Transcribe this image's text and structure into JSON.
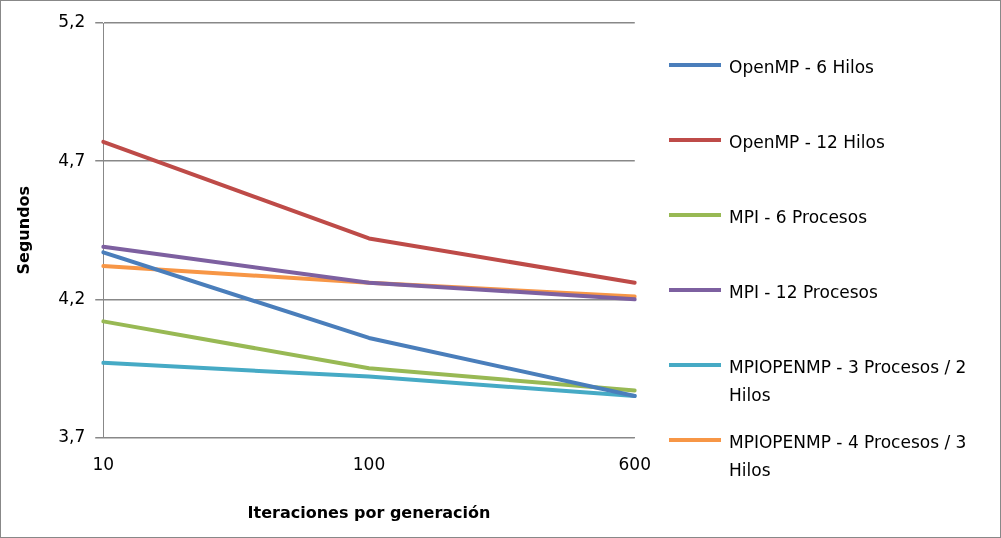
{
  "chart_data": {
    "type": "line",
    "xlabel": "Iteraciones por generación",
    "ylabel": "Segundos",
    "categories": [
      "10",
      "100",
      "600"
    ],
    "ylim": [
      3.7,
      5.2
    ],
    "yticks": [
      {
        "value": 3.7,
        "label": "3,7"
      },
      {
        "value": 4.2,
        "label": "4,2"
      },
      {
        "value": 4.7,
        "label": "4,7"
      },
      {
        "value": 5.2,
        "label": "5,2"
      }
    ],
    "grid": "y",
    "legend": "right",
    "marker": "none",
    "line_style": "solid",
    "series": [
      {
        "name": "OpenMP - 6 Hilos",
        "color": "#4a7ebb",
        "values": [
          4.37,
          4.06,
          3.85
        ]
      },
      {
        "name": "OpenMP - 12 Hilos",
        "color": "#be4b48",
        "values": [
          4.77,
          4.42,
          4.26
        ]
      },
      {
        "name": "MPI - 6 Procesos",
        "color": "#98b954",
        "values": [
          4.12,
          3.95,
          3.87
        ]
      },
      {
        "name": "MPI - 12 Procesos",
        "color": "#7d60a0",
        "values": [
          4.39,
          4.26,
          4.2
        ]
      },
      {
        "name": "MPIOPENMP - 3 Procesos / 2 Hilos",
        "color": "#46aac5",
        "values": [
          3.97,
          3.92,
          3.85
        ]
      },
      {
        "name": "MPIOPENMP - 4 Procesos / 3 Hilos",
        "color": "#f79646",
        "values": [
          4.32,
          4.26,
          4.21
        ]
      }
    ]
  }
}
